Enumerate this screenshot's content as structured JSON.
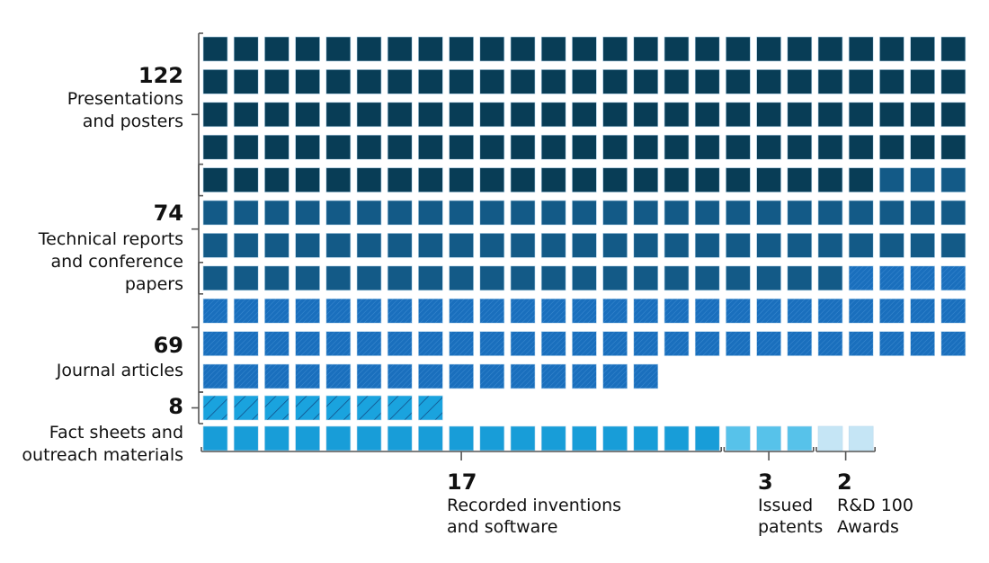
{
  "chart_data": {
    "type": "waffle",
    "columns": 25,
    "unit": 1,
    "left_groups": [
      {
        "value": 122,
        "num_label": "122",
        "label_lines": [
          "Presentations",
          "and posters"
        ],
        "color": "#083d56",
        "pattern": "solid"
      },
      {
        "value": 74,
        "num_label": "74",
        "label_lines": [
          "Technical reports",
          "and conference",
          "papers"
        ],
        "color": "#135a87",
        "pattern": "solid"
      },
      {
        "value": 69,
        "num_label": "69",
        "label_lines": [
          "Journal articles"
        ],
        "color": "#1a6fbd",
        "pattern": "fine-hatch"
      },
      {
        "value": 8,
        "num_label": "8",
        "label_lines": [
          "Fact sheets and",
          "outreach materials"
        ],
        "color": "#1aa3de",
        "pattern": "diagonal-lines"
      }
    ],
    "bottom_groups": [
      {
        "value": 17,
        "num_label": "17",
        "label_lines": [
          "Recorded inventions",
          "and software"
        ],
        "color": "#189dd8",
        "pattern": "solid"
      },
      {
        "value": 3,
        "num_label": "3",
        "label_lines": [
          "Issued",
          "patents"
        ],
        "color": "#57c2ea",
        "pattern": "solid"
      },
      {
        "value": 2,
        "num_label": "2",
        "label_lines": [
          "R&D 100",
          "Awards"
        ],
        "color": "#c5e5f5",
        "pattern": "solid"
      }
    ]
  }
}
